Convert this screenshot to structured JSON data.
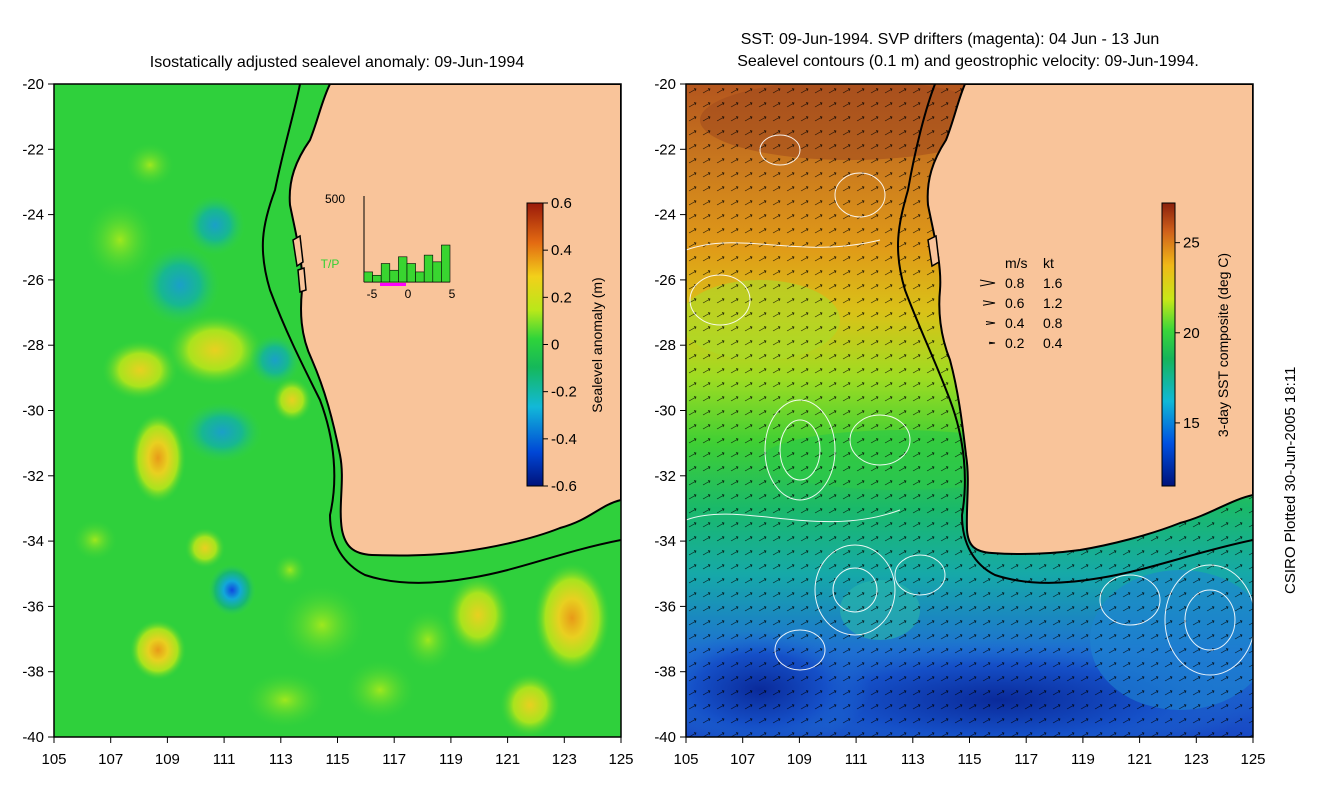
{
  "left_panel": {
    "title": "Isostatically adjusted sealevel anomaly: 09-Jun-1994",
    "colorbar_label": "Sealevel anomaly (m)",
    "colorbar_ticks": [
      "0.6",
      "0.4",
      "0.2",
      "0",
      "-0.2",
      "-0.4",
      "-0.6"
    ],
    "colorbar_range": [
      -0.6,
      0.6
    ],
    "inset": {
      "label": "T/P",
      "y_max_label": "500",
      "x_ticks": [
        "-5",
        "0",
        "5"
      ],
      "bar_values": [
        60,
        40,
        110,
        70,
        150,
        110,
        60,
        160,
        120,
        220
      ],
      "y_max": 500
    }
  },
  "right_panel": {
    "title_line1": "SST: 09-Jun-1994. SVP drifters (magenta): 04 Jun - 13 Jun",
    "title_line2": "Sealevel contours (0.1 m) and geostrophic velocity: 09-Jun-1994.",
    "colorbar_label": "3-day SST composite (deg C)",
    "colorbar_ticks": [
      "25",
      "20",
      "15"
    ],
    "colorbar_range": [
      11.5,
      27.2
    ],
    "velocity_legend": {
      "header_ms": "m/s",
      "header_kt": "kt",
      "rows": [
        {
          "ms": "0.8",
          "kt": "1.6"
        },
        {
          "ms": "0.6",
          "kt": "1.2"
        },
        {
          "ms": "0.4",
          "kt": "0.8"
        },
        {
          "ms": "0.2",
          "kt": "0.4"
        }
      ]
    }
  },
  "axes": {
    "lat_ticks": [
      "-20",
      "-22",
      "-24",
      "-26",
      "-28",
      "-30",
      "-32",
      "-34",
      "-36",
      "-38",
      "-40"
    ],
    "lon_ticks": [
      "105",
      "107",
      "109",
      "111",
      "113",
      "115",
      "117",
      "119",
      "121",
      "123",
      "125"
    ],
    "lat_range": [
      -40,
      -20
    ],
    "lon_range": [
      105,
      125
    ]
  },
  "credit": "CSIRO Plotted 30-Jun-2005 18:11",
  "colors": {
    "land": "#f9c49a",
    "coast": "#000000",
    "ocean_green": "#1fce3a",
    "ocean_bright": "#36e02a"
  }
}
